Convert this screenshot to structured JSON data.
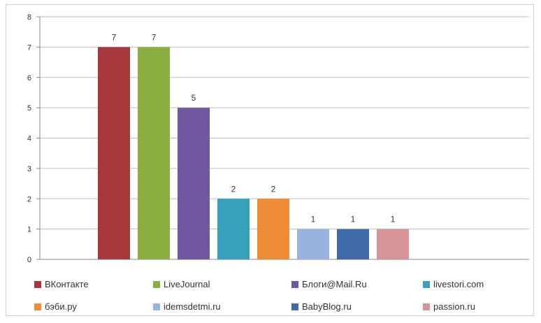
{
  "chart_data": {
    "type": "bar",
    "title": "",
    "xlabel": "",
    "ylabel": "",
    "ylim": [
      0,
      8
    ],
    "yticks": [
      "0",
      "1",
      "2",
      "3",
      "4",
      "5",
      "6",
      "7",
      "8"
    ],
    "grid": true,
    "legend_position": "bottom",
    "series": [
      {
        "name": "ВКонтакте",
        "value": 7,
        "label": "7",
        "color": "#a5383b"
      },
      {
        "name": "LiveJournal",
        "value": 7,
        "label": "7",
        "color": "#8aae3f"
      },
      {
        "name": "Блоги@Mail.Ru",
        "value": 5,
        "label": "5",
        "color": "#7057a0"
      },
      {
        "name": "livestori.com",
        "value": 2,
        "label": "2",
        "color": "#37a1bb"
      },
      {
        "name": "бэби.ру",
        "value": 2,
        "label": "2",
        "color": "#ef8c37"
      },
      {
        "name": "idemsdetmi.ru",
        "value": 1,
        "label": "1",
        "color": "#98b3df"
      },
      {
        "name": "BabyBlog.ru",
        "value": 1,
        "label": "1",
        "color": "#3f69a8"
      },
      {
        "name": "passion.ru",
        "value": 1,
        "label": "1",
        "color": "#d69497"
      }
    ]
  }
}
